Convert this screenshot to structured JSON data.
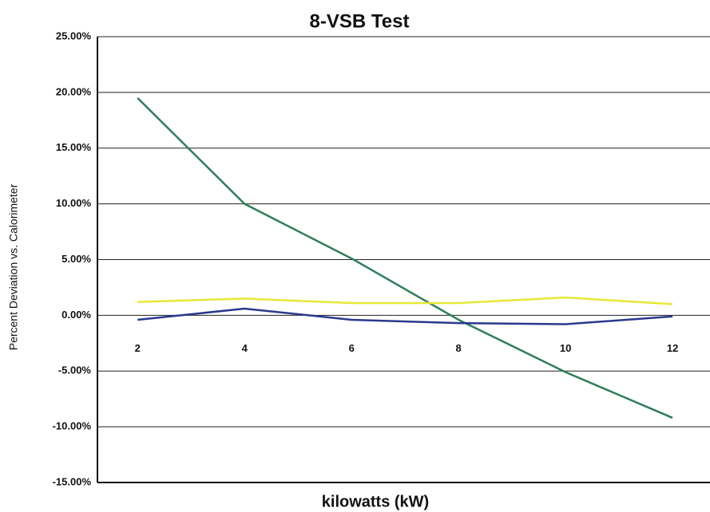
{
  "chart_data": {
    "type": "line",
    "title": "8-VSB Test",
    "x_label": "kilowatts (kW)",
    "y_label": "Percent Deviation vs. Calorimeter",
    "x": [
      2,
      4,
      6,
      8,
      10,
      12
    ],
    "series": [
      {
        "color": "#2e7d5a",
        "values": [
          19.5,
          10,
          5.1,
          -0.4,
          -5.1,
          -9.2
        ]
      },
      {
        "color": "#e8e83a",
        "values": [
          1.2,
          1.5,
          1.1,
          1.1,
          1.6,
          1.0
        ]
      },
      {
        "color": "#2a3a8c",
        "values": [
          -0.4,
          0.6,
          -0.4,
          -0.7,
          -0.8,
          -0.1
        ]
      }
    ],
    "xlim": [
      1.25,
      12.7
    ],
    "xticks": [
      2,
      4,
      6,
      8,
      10,
      12
    ],
    "ylim": [
      -15,
      25
    ],
    "yticks": [
      {
        "value": -15,
        "label": "-15.00%"
      },
      {
        "value": -10,
        "label": "-10.00%"
      },
      {
        "value": -5,
        "label": "-5.00%"
      },
      {
        "value": 0,
        "label": "0.00%"
      },
      {
        "value": 5,
        "label": "5.00%"
      },
      {
        "value": 10,
        "label": "10.00%"
      },
      {
        "value": 15,
        "label": "15.00%"
      },
      {
        "value": 20,
        "label": "20.00%"
      },
      {
        "value": 25,
        "label": "25.00%"
      }
    ],
    "grid": true
  }
}
